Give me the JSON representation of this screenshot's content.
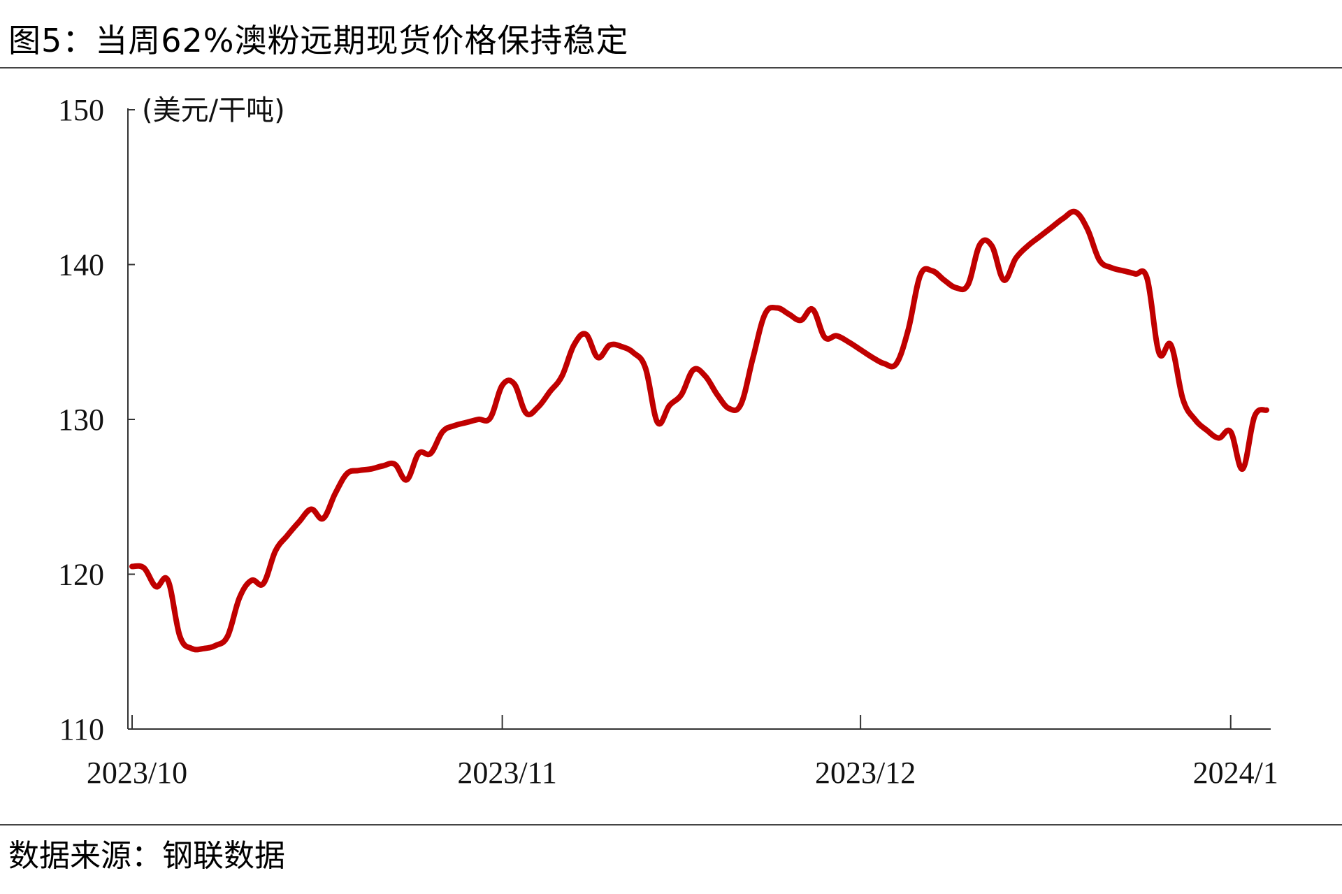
{
  "title": "图5：当周62%澳粉远期现货价格保持稳定",
  "source": "数据来源：钢联数据",
  "chart_data": {
    "type": "line",
    "title": "图5：当周62%澳粉远期现货价格保持稳定",
    "ylabel": "(美元/干吨)",
    "xlabel": "",
    "ylim": [
      110,
      150
    ],
    "yticks": [
      "110",
      "120",
      "130",
      "140",
      "150"
    ],
    "xlim": [
      "2023/10/01",
      "2024/01/04"
    ],
    "xticks": [
      {
        "date": "2023/10/01",
        "label": "2023/10"
      },
      {
        "date": "2023/11/01",
        "label": "2023/11"
      },
      {
        "date": "2023/12/01",
        "label": "2023/12"
      },
      {
        "date": "2024/01/01",
        "label": "2024/1"
      }
    ],
    "grid": false,
    "color": "#C00000",
    "series": [
      {
        "name": "",
        "points": [
          [
            "2023/10/01",
            120.5
          ],
          [
            "2023/10/02",
            120.4
          ],
          [
            "2023/10/03",
            119.2
          ],
          [
            "2023/10/04",
            119.6
          ],
          [
            "2023/10/05",
            116.0
          ],
          [
            "2023/10/06",
            115.2
          ],
          [
            "2023/10/07",
            115.2
          ],
          [
            "2023/10/08",
            115.4
          ],
          [
            "2023/10/09",
            116.0
          ],
          [
            "2023/10/10",
            118.5
          ],
          [
            "2023/10/11",
            119.6
          ],
          [
            "2023/10/12",
            119.4
          ],
          [
            "2023/10/13",
            121.5
          ],
          [
            "2023/10/14",
            122.5
          ],
          [
            "2023/10/15",
            123.4
          ],
          [
            "2023/10/16",
            124.2
          ],
          [
            "2023/10/17",
            123.6
          ],
          [
            "2023/10/18",
            125.2
          ],
          [
            "2023/10/19",
            126.5
          ],
          [
            "2023/10/20",
            126.7
          ],
          [
            "2023/10/21",
            126.8
          ],
          [
            "2023/10/22",
            127.0
          ],
          [
            "2023/10/23",
            127.1
          ],
          [
            "2023/10/24",
            126.1
          ],
          [
            "2023/10/25",
            127.8
          ],
          [
            "2023/10/26",
            127.8
          ],
          [
            "2023/10/27",
            129.2
          ],
          [
            "2023/10/28",
            129.6
          ],
          [
            "2023/10/29",
            129.8
          ],
          [
            "2023/10/30",
            130.0
          ],
          [
            "2023/10/31",
            130.1
          ],
          [
            "2023/11/01",
            132.2
          ],
          [
            "2023/11/02",
            132.3
          ],
          [
            "2023/11/03",
            130.4
          ],
          [
            "2023/11/04",
            130.8
          ],
          [
            "2023/11/05",
            131.8
          ],
          [
            "2023/11/06",
            132.8
          ],
          [
            "2023/11/07",
            134.8
          ],
          [
            "2023/11/08",
            135.5
          ],
          [
            "2023/11/09",
            134.0
          ],
          [
            "2023/11/10",
            134.8
          ],
          [
            "2023/11/11",
            134.7
          ],
          [
            "2023/11/12",
            134.3
          ],
          [
            "2023/11/13",
            133.3
          ],
          [
            "2023/11/14",
            129.8
          ],
          [
            "2023/11/15",
            130.9
          ],
          [
            "2023/11/16",
            131.6
          ],
          [
            "2023/11/17",
            133.2
          ],
          [
            "2023/11/18",
            132.8
          ],
          [
            "2023/11/19",
            131.6
          ],
          [
            "2023/11/20",
            130.7
          ],
          [
            "2023/11/21",
            131.0
          ],
          [
            "2023/11/22",
            134.0
          ],
          [
            "2023/11/23",
            136.8
          ],
          [
            "2023/11/24",
            137.2
          ],
          [
            "2023/11/25",
            136.8
          ],
          [
            "2023/11/26",
            136.4
          ],
          [
            "2023/11/27",
            137.1
          ],
          [
            "2023/11/28",
            135.3
          ],
          [
            "2023/11/29",
            135.4
          ],
          [
            "2023/11/30",
            135.0
          ],
          [
            "2023/12/01",
            134.5
          ],
          [
            "2023/12/02",
            134.0
          ],
          [
            "2023/12/03",
            133.6
          ],
          [
            "2023/12/04",
            133.6
          ],
          [
            "2023/12/05",
            135.8
          ],
          [
            "2023/12/06",
            139.3
          ],
          [
            "2023/12/07",
            139.6
          ],
          [
            "2023/12/08",
            139.0
          ],
          [
            "2023/12/09",
            138.5
          ],
          [
            "2023/12/10",
            138.7
          ],
          [
            "2023/12/11",
            141.3
          ],
          [
            "2023/12/12",
            141.2
          ],
          [
            "2023/12/13",
            139.0
          ],
          [
            "2023/12/14",
            140.4
          ],
          [
            "2023/12/15",
            141.2
          ],
          [
            "2023/12/16",
            141.8
          ],
          [
            "2023/12/17",
            142.4
          ],
          [
            "2023/12/18",
            143.0
          ],
          [
            "2023/12/19",
            143.4
          ],
          [
            "2023/12/20",
            142.3
          ],
          [
            "2023/12/21",
            140.3
          ],
          [
            "2023/12/22",
            139.8
          ],
          [
            "2023/12/23",
            139.6
          ],
          [
            "2023/12/24",
            139.4
          ],
          [
            "2023/12/25",
            139.1
          ],
          [
            "2023/12/26",
            134.3
          ],
          [
            "2023/12/27",
            134.8
          ],
          [
            "2023/12/28",
            131.3
          ],
          [
            "2023/12/29",
            130.0
          ],
          [
            "2023/12/30",
            129.3
          ],
          [
            "2023/12/31",
            128.8
          ],
          [
            "2024/01/01",
            129.2
          ],
          [
            "2024/01/02",
            126.8
          ],
          [
            "2024/01/03",
            130.2
          ],
          [
            "2024/01/04",
            130.6
          ]
        ]
      }
    ]
  }
}
